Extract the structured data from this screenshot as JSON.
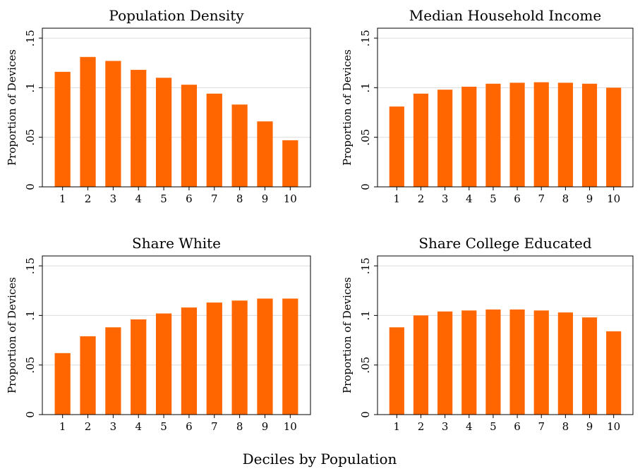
{
  "figure": {
    "xlabel": "Deciles by Population",
    "bar_color": "#ff6600",
    "grid_color": "#dcdcdc"
  },
  "chart_data": [
    {
      "type": "bar",
      "title": "Population Density",
      "ylabel": "Proportion of Devices",
      "xlabel": "",
      "categories": [
        "1",
        "2",
        "3",
        "4",
        "5",
        "6",
        "7",
        "8",
        "9",
        "10"
      ],
      "values": [
        0.116,
        0.131,
        0.127,
        0.118,
        0.11,
        0.103,
        0.094,
        0.083,
        0.066,
        0.047
      ],
      "ylim": [
        0,
        0.16
      ],
      "yticks": [
        0,
        0.05,
        0.1,
        0.15
      ],
      "ytick_labels": [
        "0",
        ".05",
        ".1",
        ".15"
      ],
      "grid": true
    },
    {
      "type": "bar",
      "title": "Median Household Income",
      "ylabel": "Proportion of Devices",
      "xlabel": "",
      "categories": [
        "1",
        "2",
        "3",
        "4",
        "5",
        "6",
        "7",
        "8",
        "9",
        "10"
      ],
      "values": [
        0.081,
        0.094,
        0.098,
        0.101,
        0.104,
        0.105,
        0.1055,
        0.105,
        0.104,
        0.1
      ],
      "ylim": [
        0,
        0.16
      ],
      "yticks": [
        0,
        0.05,
        0.1,
        0.15
      ],
      "ytick_labels": [
        "0",
        ".05",
        ".1",
        ".15"
      ],
      "grid": true
    },
    {
      "type": "bar",
      "title": "Share White",
      "ylabel": "Proportion of Devices",
      "xlabel": "",
      "categories": [
        "1",
        "2",
        "3",
        "4",
        "5",
        "6",
        "7",
        "8",
        "9",
        "10"
      ],
      "values": [
        0.062,
        0.079,
        0.088,
        0.096,
        0.102,
        0.108,
        0.113,
        0.115,
        0.117,
        0.117
      ],
      "ylim": [
        0,
        0.16
      ],
      "yticks": [
        0,
        0.05,
        0.1,
        0.15
      ],
      "ytick_labels": [
        "0",
        ".05",
        ".1",
        ".15"
      ],
      "grid": true
    },
    {
      "type": "bar",
      "title": "Share College Educated",
      "ylabel": "Proportion of Devices",
      "xlabel": "",
      "categories": [
        "1",
        "2",
        "3",
        "4",
        "5",
        "6",
        "7",
        "8",
        "9",
        "10"
      ],
      "values": [
        0.088,
        0.1,
        0.104,
        0.105,
        0.106,
        0.106,
        0.105,
        0.103,
        0.098,
        0.084
      ],
      "ylim": [
        0,
        0.16
      ],
      "yticks": [
        0,
        0.05,
        0.1,
        0.15
      ],
      "ytick_labels": [
        "0",
        ".05",
        ".1",
        ".15"
      ],
      "grid": true
    }
  ]
}
